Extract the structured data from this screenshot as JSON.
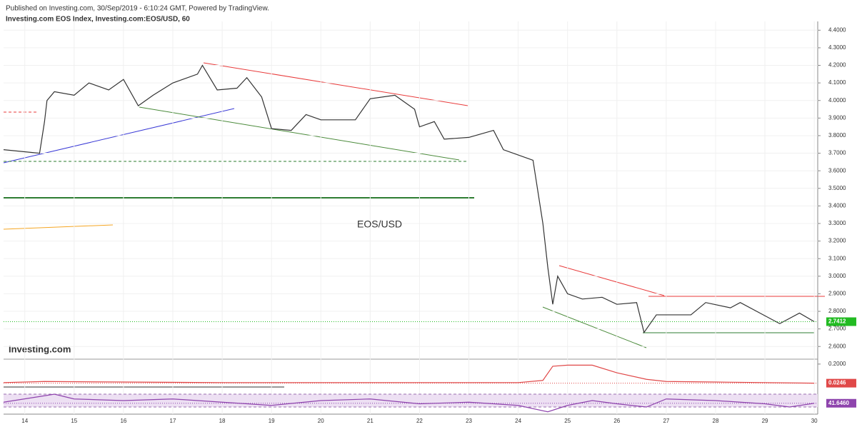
{
  "header": {
    "published": "Published on Investing.com, 30/Sep/2019 - 6:10:24 GMT, Powered by TradingView.",
    "symbol": "Investing.com EOS Index, Investing.com:EOS/USD, 60",
    "logo": "Investing.com"
  },
  "chart_data": [
    {
      "type": "line",
      "annotation": "EOS/USD",
      "color": "#333333",
      "last_color": "#22bb22",
      "x": [
        13.57,
        14.3,
        14.4,
        14.45,
        14.6,
        15,
        15.3,
        15.7,
        16,
        16.3,
        16.6,
        17,
        17.5,
        17.6,
        17.9,
        18.3,
        18.5,
        18.8,
        19,
        19.4,
        19.7,
        20,
        20.7,
        21,
        21.5,
        21.9,
        22,
        22.3,
        22.5,
        23,
        23.5,
        23.7,
        24.3,
        24.5,
        24.6,
        24.7,
        24.8,
        25,
        25.3,
        25.7,
        26,
        26.4,
        26.55,
        26.8,
        27,
        27.5,
        27.8,
        28.3,
        28.5,
        28.9,
        29.3,
        29.7,
        30
      ],
      "values": [
        3.72,
        3.7,
        3.88,
        4.0,
        4.05,
        4.03,
        4.1,
        4.06,
        4.12,
        3.97,
        4.03,
        4.1,
        4.15,
        4.2,
        4.06,
        4.07,
        4.13,
        4.02,
        3.84,
        3.83,
        3.92,
        3.89,
        3.89,
        4.01,
        4.03,
        3.95,
        3.85,
        3.88,
        3.78,
        3.79,
        3.83,
        3.72,
        3.66,
        3.3,
        3.05,
        2.84,
        3.0,
        2.9,
        2.87,
        2.88,
        2.84,
        2.85,
        2.68,
        2.78,
        2.78,
        2.78,
        2.85,
        2.82,
        2.85,
        2.79,
        2.73,
        2.79,
        2.7412
      ],
      "value_labels": [
        null,
        null,
        null,
        null,
        null,
        null,
        null,
        null,
        null,
        null,
        null,
        null,
        null,
        null,
        null,
        null,
        null,
        null,
        null,
        null,
        null,
        null,
        null,
        null,
        null,
        null,
        null,
        null,
        null,
        null,
        null,
        null,
        null,
        null,
        null,
        null,
        null,
        null,
        null,
        null,
        null,
        null,
        null,
        null,
        null,
        null,
        null,
        null,
        null,
        null,
        null,
        null,
        "2.7412"
      ],
      "xlim": [
        13.57,
        30.07
      ],
      "xticks": [
        14,
        15,
        16,
        17,
        18,
        19,
        20,
        21,
        22,
        23,
        24,
        25,
        26,
        27,
        28,
        29,
        30
      ],
      "ylim": [
        2.54,
        4.45
      ],
      "yticks": [
        {
          "value": 2.6,
          "label": "2.6000"
        },
        {
          "value": 2.7,
          "label": "2.7000"
        },
        {
          "value": 2.8,
          "label": "2.8000"
        },
        {
          "value": 2.9,
          "label": "2.9000"
        },
        {
          "value": 3.0,
          "label": "3.0000"
        },
        {
          "value": 3.1,
          "label": "3.1000"
        },
        {
          "value": 3.2,
          "label": "3.2000"
        },
        {
          "value": 3.3,
          "label": "3.3000"
        },
        {
          "value": 3.4,
          "label": "3.4000"
        },
        {
          "value": 3.5,
          "label": "3.5000"
        },
        {
          "value": 3.6,
          "label": "3.6000"
        },
        {
          "value": 3.7,
          "label": "3.7000"
        },
        {
          "value": 3.8,
          "label": "3.8000"
        },
        {
          "value": 3.9,
          "label": "3.9000"
        },
        {
          "value": 4.0,
          "label": "4.0000"
        },
        {
          "value": 4.1,
          "label": "4.1000"
        },
        {
          "value": 4.2,
          "label": "4.2000"
        },
        {
          "value": 4.3,
          "label": "4.3000"
        },
        {
          "value": 4.4,
          "label": "4.4000"
        }
      ],
      "grid": true
    },
    {
      "type": "line",
      "color": "#e04848",
      "x": [
        13.57,
        14.4,
        16,
        18,
        20,
        22,
        24,
        24.5,
        24.7,
        25,
        25.5,
        26,
        26.6,
        27,
        28,
        29,
        30
      ],
      "values": [
        0.03,
        0.04,
        0.035,
        0.03,
        0.03,
        0.03,
        0.03,
        0.05,
        0.18,
        0.19,
        0.19,
        0.12,
        0.06,
        0.04,
        0.035,
        0.03,
        0.0246
      ],
      "value_labels": [
        null,
        null,
        null,
        null,
        null,
        null,
        null,
        null,
        null,
        null,
        null,
        null,
        null,
        null,
        null,
        null,
        "0.0246"
      ],
      "ylim": [
        -0.05,
        0.245
      ],
      "yticks": [
        {
          "value": 0.2,
          "label": "0.2000"
        }
      ]
    },
    {
      "type": "line",
      "color": "#8e44ad",
      "band": [
        30,
        70
      ],
      "x": [
        13.57,
        14.4,
        14.6,
        15,
        16,
        17,
        18,
        19,
        20,
        21,
        22,
        23,
        24,
        24.6,
        25,
        25.5,
        26,
        26.6,
        27,
        28,
        29,
        29.5,
        30
      ],
      "values": [
        45,
        65,
        70,
        55,
        50,
        55,
        45,
        35,
        50,
        55,
        40,
        45,
        35,
        15,
        35,
        50,
        40,
        30,
        55,
        50,
        40,
        30,
        41.646
      ],
      "value_labels": [
        null,
        null,
        null,
        null,
        null,
        null,
        null,
        null,
        null,
        null,
        null,
        null,
        null,
        null,
        null,
        null,
        null,
        null,
        null,
        null,
        null,
        null,
        "41.6460"
      ],
      "ylim": [
        12.2,
        78.9
      ]
    }
  ]
}
